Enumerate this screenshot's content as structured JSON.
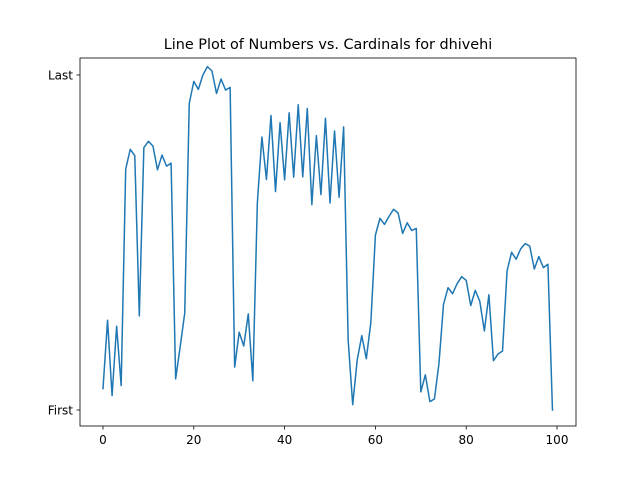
{
  "chart_data": {
    "type": "line",
    "title": "Line Plot of Numbers vs. Cardinals for dhivehi",
    "xlabel": "",
    "ylabel": "",
    "xlim": [
      -5,
      104
    ],
    "ylim": [
      0,
      1
    ],
    "xticks": [
      0,
      20,
      40,
      60,
      80,
      100
    ],
    "yticks": [
      {
        "value": 0,
        "label": "First"
      },
      {
        "value": 1,
        "label": "Last"
      }
    ],
    "grid": false,
    "legend": "none",
    "line_color": "#1f77b4",
    "series": [
      {
        "x": [
          0,
          1,
          2,
          3,
          4,
          5,
          6,
          7,
          8,
          9,
          10,
          11,
          12,
          13,
          14,
          15,
          16,
          17,
          18,
          19,
          20,
          21,
          22,
          23,
          24,
          25,
          26,
          27,
          28,
          29,
          30,
          31,
          32,
          33,
          34,
          35,
          36,
          37,
          38,
          39,
          40,
          41,
          42,
          43,
          44,
          45,
          46,
          47,
          48,
          49,
          50,
          51,
          52,
          53,
          54,
          55,
          56,
          57,
          58,
          59,
          60,
          61,
          62,
          63,
          64,
          65,
          66,
          67,
          68,
          69,
          70,
          71,
          72,
          73,
          74,
          75,
          76,
          77,
          78,
          79,
          80,
          81,
          82,
          83,
          84,
          85,
          86,
          87,
          88,
          89,
          90,
          91,
          92,
          93,
          94,
          95,
          96,
          97,
          98,
          99
        ],
        "values": [
          0.064,
          0.268,
          0.043,
          0.25,
          0.073,
          0.719,
          0.778,
          0.759,
          0.281,
          0.783,
          0.802,
          0.788,
          0.717,
          0.761,
          0.728,
          0.737,
          0.093,
          0.189,
          0.289,
          0.915,
          0.981,
          0.957,
          1.0,
          1.025,
          1.012,
          0.945,
          0.988,
          0.955,
          0.963,
          0.128,
          0.232,
          0.191,
          0.287,
          0.087,
          0.619,
          0.815,
          0.688,
          0.879,
          0.652,
          0.858,
          0.687,
          0.887,
          0.695,
          0.911,
          0.696,
          0.9,
          0.613,
          0.819,
          0.643,
          0.871,
          0.618,
          0.833,
          0.635,
          0.845,
          0.209,
          0.016,
          0.15,
          0.222,
          0.153,
          0.262,
          0.522,
          0.572,
          0.554,
          0.578,
          0.599,
          0.588,
          0.527,
          0.559,
          0.536,
          0.542,
          0.054,
          0.105,
          0.025,
          0.033,
          0.139,
          0.315,
          0.365,
          0.347,
          0.377,
          0.398,
          0.387,
          0.312,
          0.357,
          0.324,
          0.236,
          0.344,
          0.147,
          0.167,
          0.176,
          0.415,
          0.471,
          0.45,
          0.481,
          0.497,
          0.489,
          0.421,
          0.458,
          0.425,
          0.435,
          0.0
        ]
      }
    ]
  }
}
